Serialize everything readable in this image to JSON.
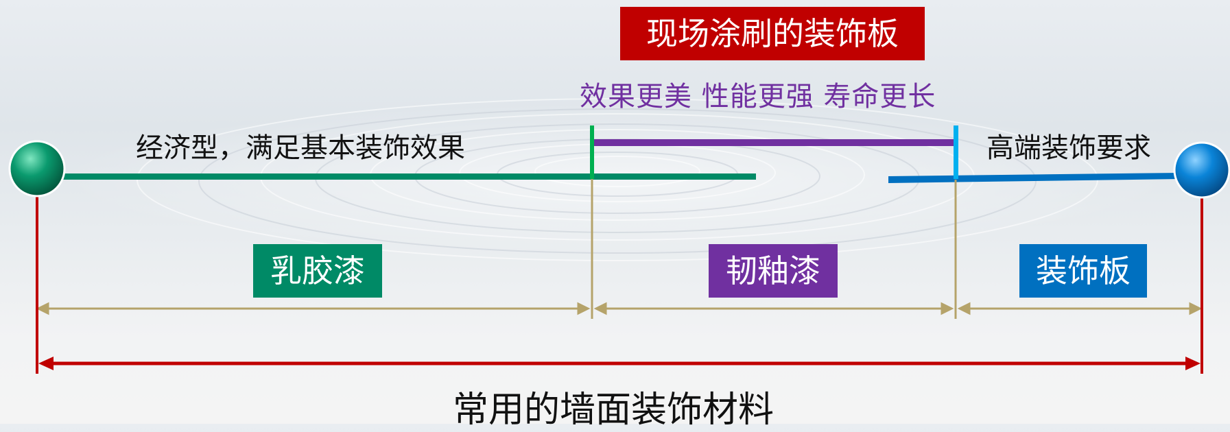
{
  "title": "现场涂刷的装饰板",
  "benefits": "效果更美  性能更强  寿命更长",
  "left_desc": "经济型，满足基本装饰效果",
  "right_desc": "高端装饰要求",
  "categories": {
    "latex": "乳胶漆",
    "tough": "韧釉漆",
    "board": "装饰板"
  },
  "bottom_label": "常用的墙面装饰材料",
  "colors": {
    "title_bg": "#c00000",
    "benefit_text": "#7030a0",
    "latex_green": "#008a66",
    "tough_purple": "#7030a0",
    "board_blue": "#0070c0",
    "marker_green": "#00b050",
    "marker_cyan": "#00b0f0",
    "range_red": "#c00000",
    "segment_tan": "#b5a36a"
  },
  "icons": {
    "left_ball": "green-sphere-icon",
    "right_ball": "blue-sphere-icon"
  }
}
